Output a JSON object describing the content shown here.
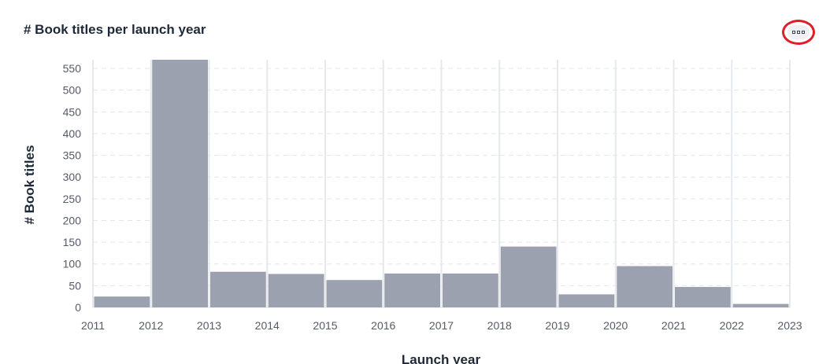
{
  "header": {
    "title": "# Book titles per launch year",
    "menu_icon": "more-options-icon",
    "highlight_color": "#e11d2a"
  },
  "chart_data": {
    "type": "bar",
    "title": "# Book titles per launch year",
    "xlabel": "Launch year",
    "ylabel": "# Book titles",
    "bins": [
      {
        "start": 2011,
        "end": 2012,
        "value": 25
      },
      {
        "start": 2012,
        "end": 2013,
        "value": 570
      },
      {
        "start": 2013,
        "end": 2014,
        "value": 82
      },
      {
        "start": 2014,
        "end": 2015,
        "value": 77
      },
      {
        "start": 2015,
        "end": 2016,
        "value": 63
      },
      {
        "start": 2016,
        "end": 2017,
        "value": 78
      },
      {
        "start": 2017,
        "end": 2018,
        "value": 78
      },
      {
        "start": 2018,
        "end": 2019,
        "value": 140
      },
      {
        "start": 2019,
        "end": 2020,
        "value": 30
      },
      {
        "start": 2020,
        "end": 2021,
        "value": 95
      },
      {
        "start": 2021,
        "end": 2022,
        "value": 47
      },
      {
        "start": 2022,
        "end": 2023,
        "value": 8
      }
    ],
    "xticks": [
      "2011",
      "2012",
      "2013",
      "2014",
      "2015",
      "2016",
      "2017",
      "2018",
      "2019",
      "2020",
      "2021",
      "2022",
      "2023"
    ],
    "yticks": [
      0,
      50,
      100,
      150,
      200,
      250,
      300,
      350,
      400,
      450,
      500,
      550
    ],
    "xlim": [
      2011,
      2023
    ],
    "ylim": [
      0,
      570
    ],
    "grid": true,
    "bar_color": "#9ba1ae"
  }
}
